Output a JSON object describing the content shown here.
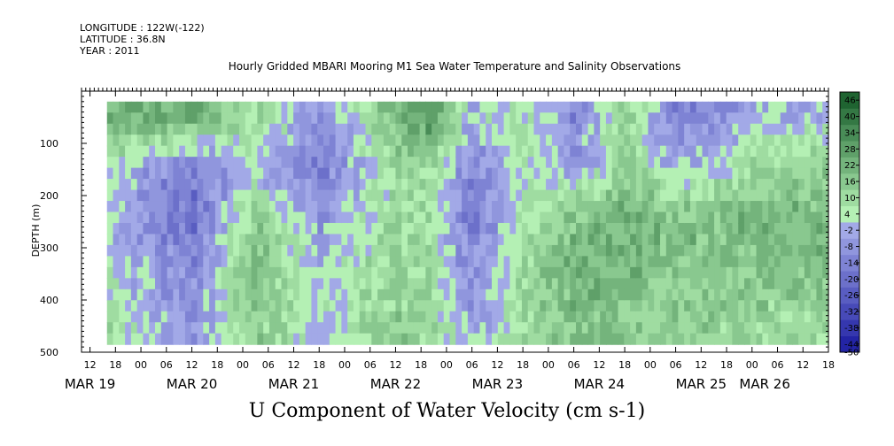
{
  "header": {
    "longitude": "LONGITUDE : 122W(-122)",
    "latitude": "LATITUDE : 36.8N",
    "year": "YEAR : 2011"
  },
  "chart_data": {
    "type": "heatmap",
    "title": "Hourly Gridded MBARI Mooring M1 Sea Water Temperature and Salinity Observations",
    "xlabel": "U Component of Water Velocity (cm s-1)",
    "ylabel": "DEPTH (m)",
    "ylim": [
      500,
      0
    ],
    "y_ticks": [
      100,
      200,
      300,
      400,
      500
    ],
    "data_depth_range": [
      20,
      485
    ],
    "time_axis": {
      "start": "2011-03-19T10:00",
      "end": "2011-03-26T18:00",
      "data_start": "2011-03-19T16:00",
      "hour_labels": [
        "12",
        "18",
        "00",
        "06",
        "12",
        "18",
        "00",
        "06",
        "12",
        "18",
        "00",
        "06",
        "12",
        "18",
        "00",
        "06",
        "12",
        "18",
        "00",
        "06",
        "12",
        "18",
        "00",
        "06",
        "12",
        "18",
        "00",
        "06",
        "12",
        "18",
        "00",
        "06"
      ],
      "day_labels": [
        {
          "label": "MAR 19",
          "time": "2011-03-19T12:00"
        },
        {
          "label": "MAR 20",
          "time": "2011-03-20T12:00"
        },
        {
          "label": "MAR 21",
          "time": "2011-03-21T12:00"
        },
        {
          "label": "MAR 22",
          "time": "2011-03-22T12:00"
        },
        {
          "label": "MAR 23",
          "time": "2011-03-23T12:00"
        },
        {
          "label": "MAR 24",
          "time": "2011-03-24T12:00"
        },
        {
          "label": "MAR 25",
          "time": "2011-03-25T12:00"
        },
        {
          "label": "MAR 26",
          "time": "2011-03-26T03:00"
        }
      ]
    },
    "colorbar": {
      "levels": [
        -50,
        -44,
        -38,
        -32,
        -26,
        -20,
        -14,
        -8,
        -2,
        4,
        10,
        16,
        22,
        28,
        34,
        40,
        46
      ],
      "label_values": [
        "46",
        "40",
        "34",
        "28",
        "22",
        "16",
        "10",
        "4",
        "-2",
        "-8",
        "-14",
        "-20",
        "-26",
        "-32",
        "-38",
        "-44",
        "-50"
      ],
      "negative_color_low": "#1a1aa0",
      "negative_color_high": "#b4bcf0",
      "positive_color_low": "#b4f0b4",
      "positive_color_high": "#145a28"
    },
    "approximate_field": [
      {
        "time": "2011-03-19T16:00",
        "u_by_depth": {
          "50": 20,
          "150": 0,
          "250": -4,
          "350": 2,
          "450": 6
        }
      },
      {
        "time": "2011-03-20T12:00",
        "u_by_depth": {
          "50": 20,
          "150": -20,
          "250": -22,
          "350": -16,
          "450": -10
        }
      },
      {
        "time": "2011-03-21T03:00",
        "u_by_depth": {
          "50": 8,
          "150": -4,
          "250": 14,
          "350": 16,
          "450": 12
        }
      },
      {
        "time": "2011-03-21T18:00",
        "u_by_depth": {
          "50": -10,
          "150": -18,
          "250": -10,
          "350": -4,
          "450": -2
        }
      },
      {
        "time": "2011-03-22T12:00",
        "u_by_depth": {
          "50": 16,
          "150": 6,
          "250": 8,
          "350": 10,
          "450": 12
        }
      },
      {
        "time": "2011-03-22T20:00",
        "u_by_depth": {
          "50": 26,
          "150": 8,
          "250": 4,
          "350": 6,
          "450": 8
        }
      },
      {
        "time": "2011-03-23T06:00",
        "u_by_depth": {
          "50": -4,
          "150": -16,
          "250": -20,
          "350": -12,
          "450": -6
        }
      },
      {
        "time": "2011-03-23T18:00",
        "u_by_depth": {
          "50": 4,
          "150": 2,
          "250": 4,
          "350": 8,
          "450": 6
        }
      },
      {
        "time": "2011-03-24T06:00",
        "u_by_depth": {
          "50": -14,
          "150": -10,
          "250": 14,
          "350": 18,
          "450": 16
        }
      },
      {
        "time": "2011-03-24T18:00",
        "u_by_depth": {
          "50": 10,
          "150": 10,
          "250": 20,
          "350": 18,
          "450": 12
        }
      },
      {
        "time": "2011-03-25T06:00",
        "u_by_depth": {
          "50": -18,
          "150": -6,
          "250": 16,
          "350": 14,
          "450": 10
        }
      },
      {
        "time": "2011-03-26T06:00",
        "u_by_depth": {
          "50": -4,
          "150": 10,
          "250": 18,
          "350": 14,
          "450": 8
        }
      }
    ]
  }
}
